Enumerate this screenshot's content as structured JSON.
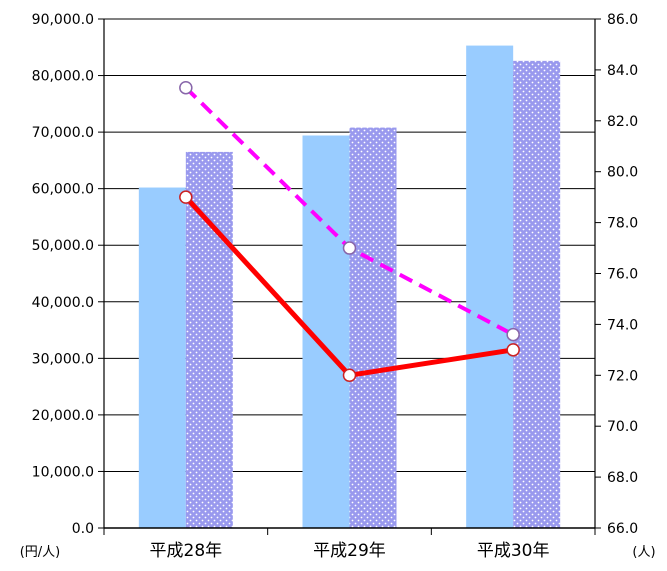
{
  "chart_data": {
    "type": "bar",
    "categories": [
      "平成28年",
      "平成29年",
      "平成30年"
    ],
    "left_axis": {
      "unit": "(円/人)",
      "ylim": [
        0,
        90000
      ],
      "ticks": [
        "0.0",
        "10,000.0",
        "20,000.0",
        "30,000.0",
        "40,000.0",
        "50,000.0",
        "60,000.0",
        "70,000.0",
        "80,000.0",
        "90,000.0"
      ]
    },
    "right_axis": {
      "unit": "(人)",
      "ylim": [
        66,
        86
      ],
      "ticks": [
        "66.0",
        "68.0",
        "70.0",
        "72.0",
        "74.0",
        "76.0",
        "78.0",
        "80.0",
        "82.0",
        "84.0",
        "86.0"
      ]
    },
    "bar_series": [
      {
        "values": [
          60200,
          69400,
          85300
        ],
        "color": "#99ccff",
        "pattern": "solid",
        "axis": "left"
      },
      {
        "values": [
          66500,
          70800,
          82600
        ],
        "color": "#9999ee",
        "pattern": "dotted",
        "axis": "left"
      }
    ],
    "line_series": [
      {
        "values": [
          79.0,
          72.0,
          73.0
        ],
        "color": "#ff0000",
        "style": "solid",
        "axis": "right"
      },
      {
        "values": [
          83.3,
          77.0,
          73.6
        ],
        "color": "#ff00ff",
        "style": "dashed",
        "axis": "right"
      }
    ],
    "grid": true
  }
}
